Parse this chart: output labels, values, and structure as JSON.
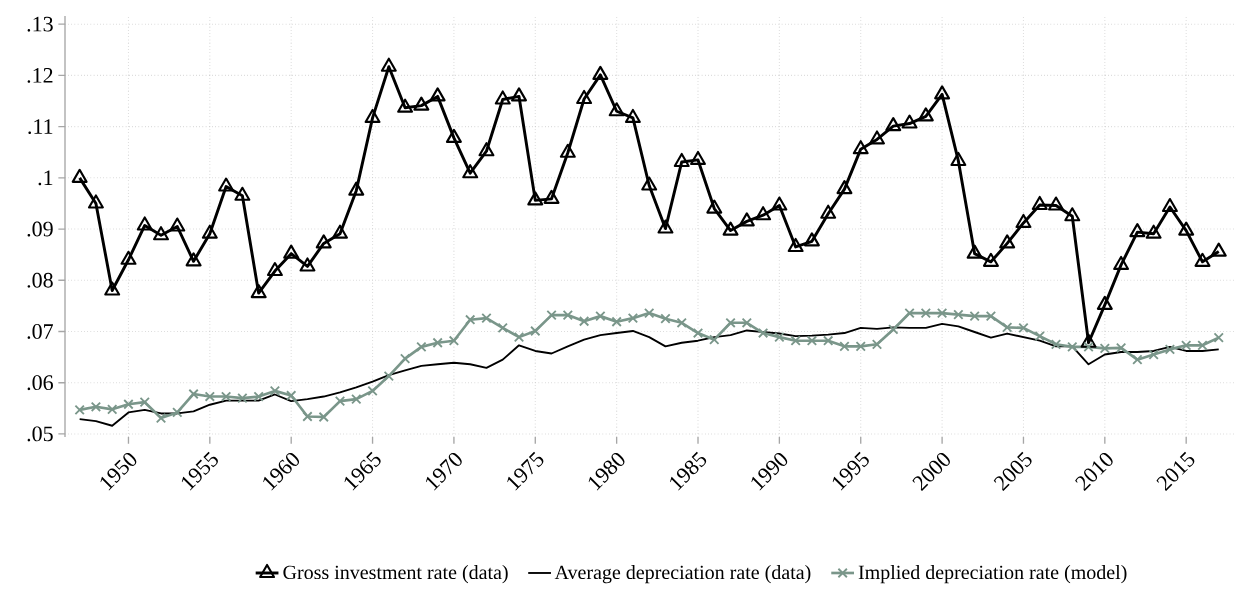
{
  "chart_data": {
    "type": "line",
    "x": [
      1947,
      1948,
      1949,
      1950,
      1951,
      1952,
      1953,
      1954,
      1955,
      1956,
      1957,
      1958,
      1959,
      1960,
      1961,
      1962,
      1963,
      1964,
      1965,
      1966,
      1967,
      1968,
      1969,
      1970,
      1971,
      1972,
      1973,
      1974,
      1975,
      1976,
      1977,
      1978,
      1979,
      1980,
      1981,
      1982,
      1983,
      1984,
      1985,
      1986,
      1987,
      1988,
      1989,
      1990,
      1991,
      1992,
      1993,
      1994,
      1995,
      1996,
      1997,
      1998,
      1999,
      2000,
      2001,
      2002,
      2003,
      2004,
      2005,
      2006,
      2007,
      2008,
      2009,
      2010,
      2011,
      2012,
      2013,
      2014,
      2015,
      2016,
      2017
    ],
    "series": [
      {
        "name": "Gross investment rate (data)",
        "color": "#000000",
        "marker": "triangle",
        "values": [
          0.1,
          0.095,
          0.078,
          0.084,
          0.0907,
          0.0888,
          0.0905,
          0.0837,
          0.0891,
          0.0983,
          0.0965,
          0.0775,
          0.0818,
          0.0852,
          0.0827,
          0.0872,
          0.0891,
          0.0975,
          0.1117,
          0.1217,
          0.1137,
          0.1141,
          0.1159,
          0.1078,
          0.1009,
          0.1052,
          0.1153,
          0.1159,
          0.0956,
          0.0959,
          0.1049,
          0.1154,
          0.1201,
          0.113,
          0.1117,
          0.0985,
          0.0901,
          0.1031,
          0.1035,
          0.094,
          0.0897,
          0.0915,
          0.0927,
          0.0946,
          0.0865,
          0.0876,
          0.093,
          0.0978,
          0.1056,
          0.1075,
          0.1101,
          0.1106,
          0.112,
          0.1163,
          0.1033,
          0.0852,
          0.0836,
          0.0872,
          0.0912,
          0.0947,
          0.0946,
          0.0925,
          0.0678,
          0.0752,
          0.083,
          0.0894,
          0.0891,
          0.0943,
          0.0897,
          0.0836,
          0.0856
        ]
      },
      {
        "name": "Average depreciation rate (data)",
        "color": "#000000",
        "marker": "none",
        "values": [
          0.0529,
          0.0525,
          0.0516,
          0.0542,
          0.0547,
          0.054,
          0.054,
          0.0544,
          0.0557,
          0.0565,
          0.0565,
          0.0565,
          0.0577,
          0.0564,
          0.0568,
          0.0573,
          0.0581,
          0.0591,
          0.0602,
          0.0615,
          0.0624,
          0.0633,
          0.0636,
          0.0639,
          0.0636,
          0.0629,
          0.0645,
          0.0673,
          0.0662,
          0.0657,
          0.0671,
          0.0684,
          0.0693,
          0.0697,
          0.0701,
          0.0689,
          0.0671,
          0.0678,
          0.0682,
          0.0689,
          0.0693,
          0.0702,
          0.0699,
          0.0696,
          0.0691,
          0.0692,
          0.0694,
          0.0697,
          0.0707,
          0.0705,
          0.0708,
          0.0707,
          0.0707,
          0.0715,
          0.071,
          0.0699,
          0.0688,
          0.0696,
          0.0689,
          0.0682,
          0.0671,
          0.0671,
          0.0636,
          0.0655,
          0.066,
          0.066,
          0.0662,
          0.067,
          0.0662,
          0.0662,
          0.0665
        ]
      },
      {
        "name": "Implied depreciation rate (model)",
        "color": "#7a968a",
        "marker": "cross",
        "values": [
          0.0547,
          0.0553,
          0.0548,
          0.0558,
          0.0562,
          0.0531,
          0.0542,
          0.0578,
          0.0573,
          0.0573,
          0.057,
          0.0573,
          0.0584,
          0.0575,
          0.0534,
          0.0533,
          0.0564,
          0.0568,
          0.0584,
          0.0613,
          0.0647,
          0.067,
          0.0678,
          0.0682,
          0.0723,
          0.0726,
          0.0707,
          0.0689,
          0.0701,
          0.0732,
          0.0732,
          0.072,
          0.073,
          0.0719,
          0.0726,
          0.0736,
          0.0725,
          0.0717,
          0.0697,
          0.0684,
          0.0717,
          0.0717,
          0.0697,
          0.0689,
          0.0682,
          0.0682,
          0.0682,
          0.0671,
          0.0671,
          0.0675,
          0.0704,
          0.0736,
          0.0736,
          0.0736,
          0.0733,
          0.073,
          0.073,
          0.0708,
          0.0707,
          0.0691,
          0.0675,
          0.067,
          0.067,
          0.0667,
          0.0668,
          0.0645,
          0.0655,
          0.0665,
          0.0673,
          0.0673,
          0.0688
        ]
      }
    ],
    "xlim": [
      1946.1,
      2018
    ],
    "xticks": [
      1950,
      1955,
      1960,
      1965,
      1970,
      1975,
      1980,
      1985,
      1990,
      1995,
      2000,
      2005,
      2010,
      2015
    ],
    "ylim": [
      0.0494,
      0.1316
    ],
    "yticks": [
      {
        "value": 0.05,
        "label": ".05"
      },
      {
        "value": 0.06,
        "label": ".06"
      },
      {
        "value": 0.07,
        "label": ".07"
      },
      {
        "value": 0.08,
        "label": ".08"
      },
      {
        "value": 0.09,
        "label": ".09"
      },
      {
        "value": 0.1,
        "label": ".1"
      },
      {
        "value": 0.11,
        "label": ".11"
      },
      {
        "value": 0.12,
        "label": ".12"
      },
      {
        "value": 0.13,
        "label": ".13"
      }
    ],
    "grid": true,
    "legend": "bottom",
    "line_style": "solid"
  }
}
